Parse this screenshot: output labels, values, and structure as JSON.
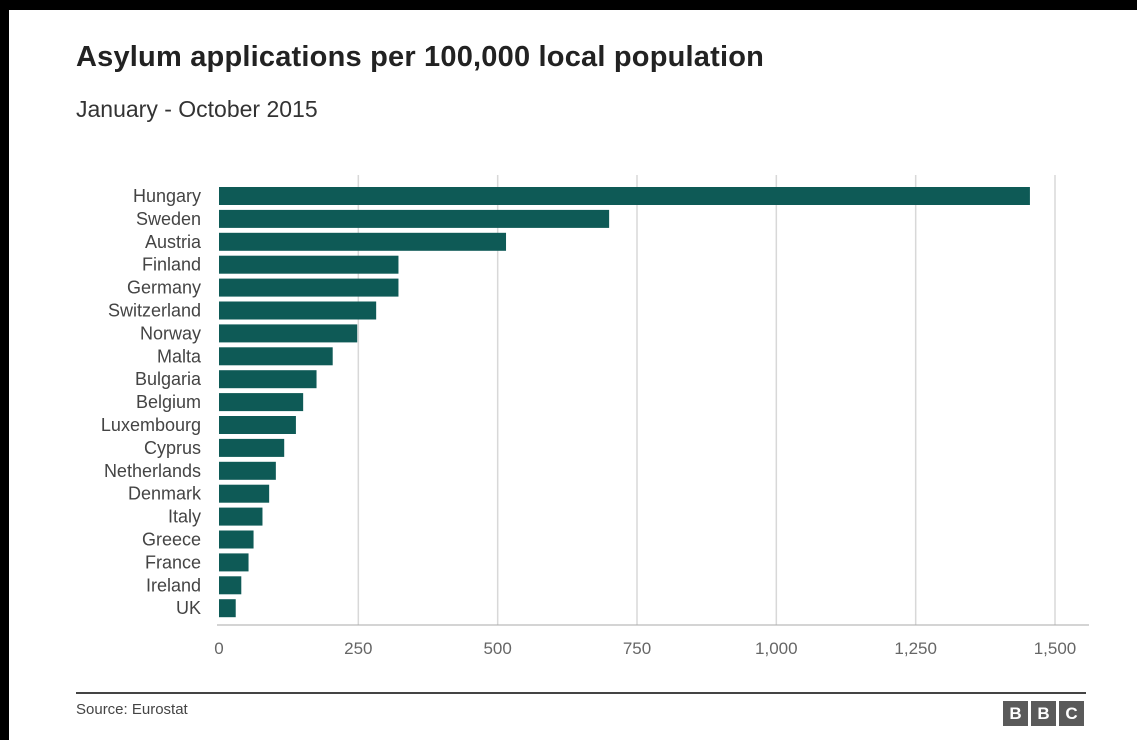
{
  "title": "Asylum applications per 100,000 local population",
  "subtitle": "January - October 2015",
  "source": "Source: Eurostat",
  "logo": [
    "B",
    "B",
    "C"
  ],
  "colors": {
    "bar": "#0e5a56",
    "grid": "#d8d8d8",
    "axis": "#aaaaaa"
  },
  "chart_data": {
    "type": "bar",
    "orientation": "horizontal",
    "categories": [
      "Hungary",
      "Sweden",
      "Austria",
      "Finland",
      "Germany",
      "Switzerland",
      "Norway",
      "Malta",
      "Bulgaria",
      "Belgium",
      "Luxembourg",
      "Cyprus",
      "Netherlands",
      "Denmark",
      "Italy",
      "Greece",
      "France",
      "Ireland",
      "UK"
    ],
    "values": [
      1455,
      700,
      515,
      322,
      322,
      282,
      248,
      204,
      175,
      151,
      138,
      117,
      102,
      90,
      78,
      62,
      53,
      40,
      30
    ],
    "xlim": [
      0,
      1500
    ],
    "ticks": [
      0,
      250,
      500,
      750,
      1000,
      1250,
      1500
    ],
    "tick_labels": [
      "0",
      "250",
      "500",
      "750",
      "1,000",
      "1,250",
      "1,500"
    ],
    "grid": true,
    "legend": "none"
  }
}
